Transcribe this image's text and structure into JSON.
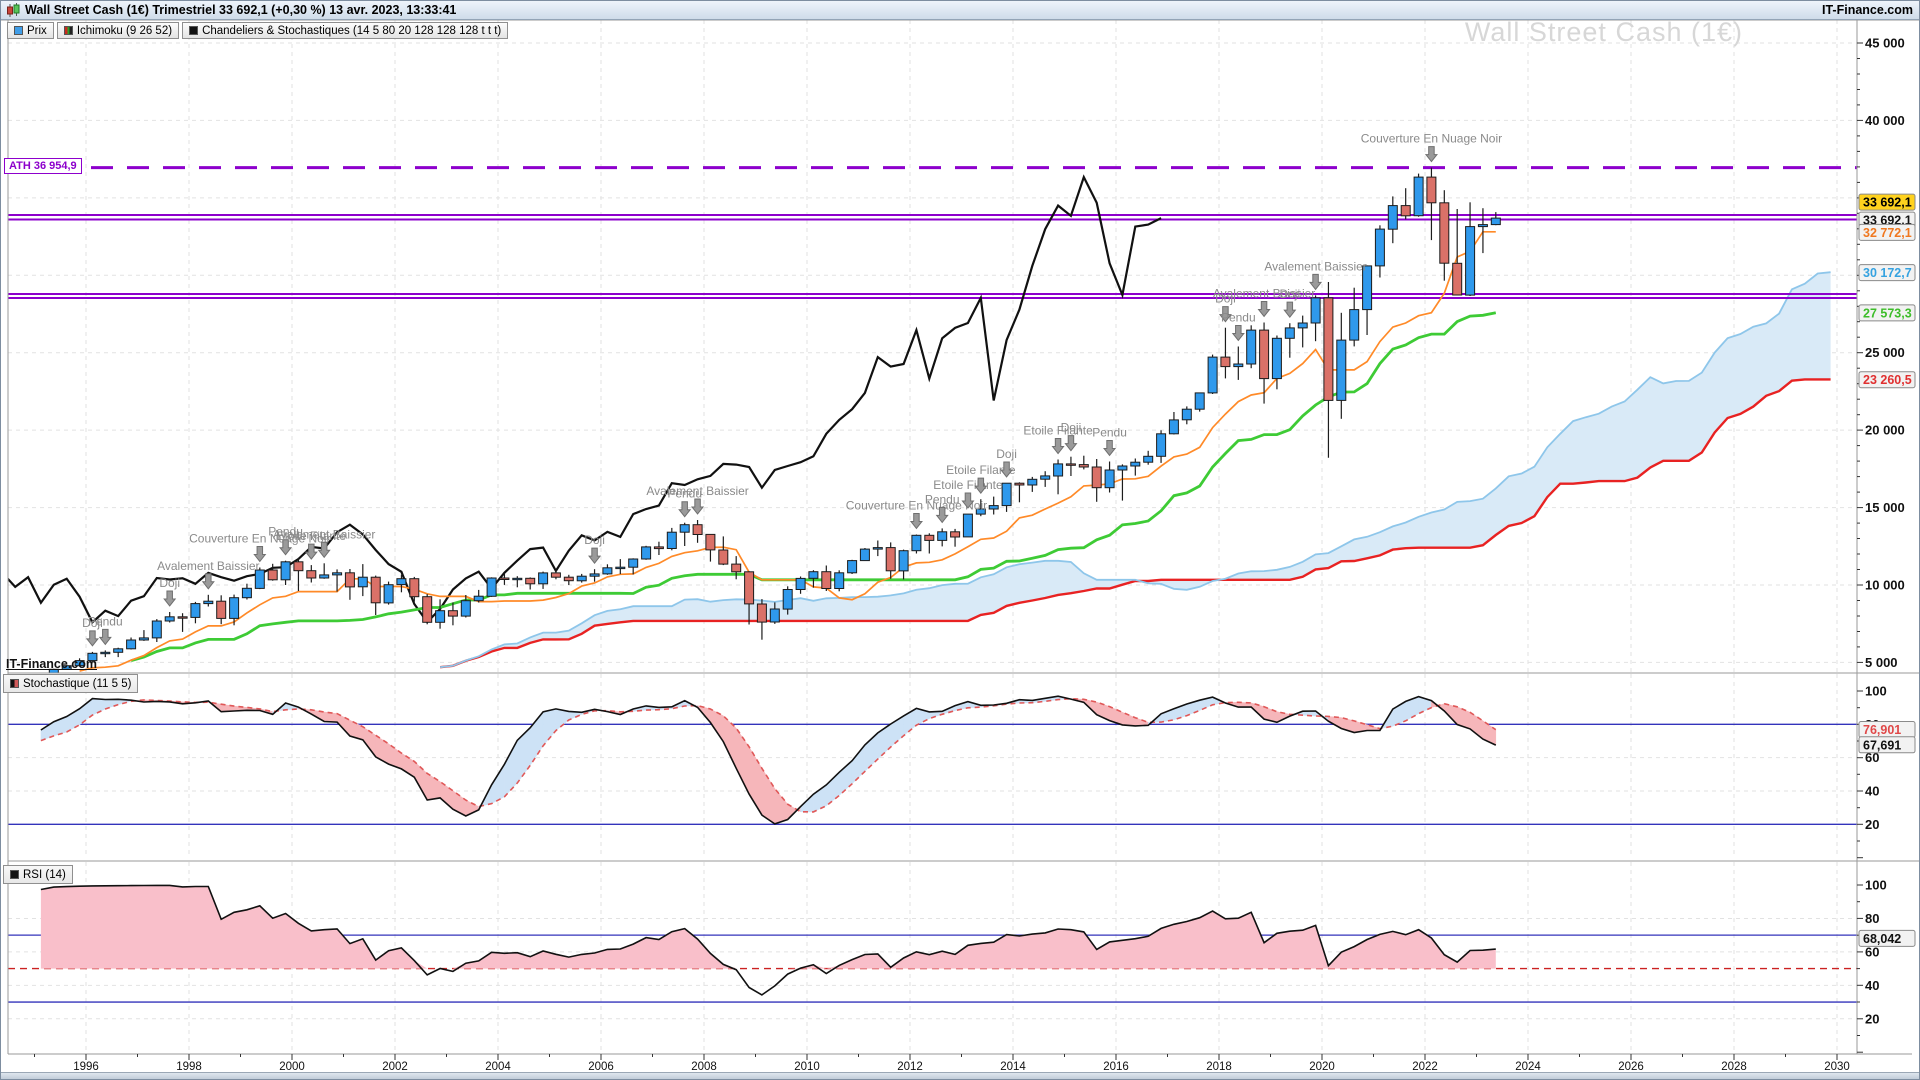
{
  "window": {
    "title": "Wall Street Cash (1€) Trimestriel 33 692,1 (+0,30 %) 13 avr. 2023, 13:33:41",
    "brand": "IT-Finance.com"
  },
  "tabs": [
    {
      "label": "Prix"
    },
    {
      "label": "Ichimoku (9 26 52)"
    },
    {
      "label": "Chandeliers & Stochastiques (14 5 80 20 128 128 128 t t t)"
    }
  ],
  "watermark": "Wall Street Cash (1€)",
  "chart_watermark": "IT-Finance.com",
  "ath": {
    "label": "ATH 36 954,9",
    "value": 36954.9
  },
  "panels": {
    "stoch_label": "Stochastique (11 5 5)",
    "rsi_label": "RSI (14)"
  },
  "axis": {
    "main_ticks": [
      {
        "v": 45000,
        "l": "45 000"
      },
      {
        "v": 40000,
        "l": "40 000"
      },
      {
        "v": 25000,
        "l": "25 000"
      },
      {
        "v": 20000,
        "l": "20 000"
      },
      {
        "v": 15000,
        "l": "15 000"
      },
      {
        "v": 10000,
        "l": "10 000"
      },
      {
        "v": 5000,
        "l": "5 000"
      }
    ],
    "price_tags": [
      {
        "l": "33 692,1",
        "v": 33692.1,
        "fg": "#000000",
        "bg": "#ffd21e",
        "dy": -16
      },
      {
        "l": "33 692,1",
        "v": 33692.1,
        "fg": "#111111",
        "bg": "#f2f2f2",
        "dy": 2
      },
      {
        "l": "32 772,1",
        "v": 32772.1,
        "fg": "#f07820",
        "bg": "#f2f2f2",
        "dy": 0
      },
      {
        "l": "30 172,7",
        "v": 30172.7,
        "fg": "#35a2e0",
        "bg": "#f2f2f2",
        "dy": 0
      },
      {
        "l": "27 573,3",
        "v": 27573.3,
        "fg": "#3dbd2a",
        "bg": "#f2f2f2",
        "dy": 0
      },
      {
        "l": "23 260,5",
        "v": 23260.5,
        "fg": "#e03030",
        "bg": "#f2f2f2",
        "dy": 0
      }
    ],
    "stoch_ticks": [
      {
        "v": 100,
        "l": "100"
      },
      {
        "v": 80,
        "l": "80"
      },
      {
        "v": 60,
        "l": "60"
      },
      {
        "v": 40,
        "l": "40"
      },
      {
        "v": 20,
        "l": "20"
      }
    ],
    "stoch_tags": [
      {
        "l": "76,901",
        "v": 76.901,
        "fg": "#e04848",
        "bg": "#f2f2f2"
      },
      {
        "l": "67,691",
        "v": 67.691,
        "fg": "#111111",
        "bg": "#f2f2f2"
      }
    ],
    "rsi_ticks": [
      {
        "v": 100,
        "l": "100"
      },
      {
        "v": 80,
        "l": "80"
      },
      {
        "v": 60,
        "l": "60"
      },
      {
        "v": 40,
        "l": "40"
      },
      {
        "v": 20,
        "l": "20"
      }
    ],
    "rsi_tags": [
      {
        "l": "68,042",
        "v": 68.042,
        "fg": "#111111",
        "bg": "#f2f2f2"
      }
    ],
    "years": [
      {
        "v": 1996,
        "l": "1996"
      },
      {
        "v": 1998,
        "l": "1998"
      },
      {
        "v": 2000,
        "l": "2000"
      },
      {
        "v": 2002,
        "l": "2002"
      },
      {
        "v": 2004,
        "l": "2004"
      },
      {
        "v": 2006,
        "l": "2006"
      },
      {
        "v": 2008,
        "l": "2008"
      },
      {
        "v": 2010,
        "l": "2010"
      },
      {
        "v": 2012,
        "l": "2012"
      },
      {
        "v": 2014,
        "l": "2014"
      },
      {
        "v": 2016,
        "l": "2016"
      },
      {
        "v": 2018,
        "l": "2018"
      },
      {
        "v": 2020,
        "l": "2020"
      },
      {
        "v": 2022,
        "l": "2022"
      },
      {
        "v": 2024,
        "l": "2024"
      },
      {
        "v": 2026,
        "l": "2026"
      },
      {
        "v": 2028,
        "l": "2028"
      },
      {
        "v": 2030,
        "l": "2030"
      }
    ]
  },
  "levels": {
    "purple_lines": [
      33890,
      33600,
      28790,
      28530
    ]
  },
  "colors": {
    "candle_up": "#2f99ec",
    "candle_down": "#da7168",
    "candle_border": "#1c1c1c",
    "tenkan": "#ff8a28",
    "kijun": "#3ecb35",
    "senkou_a": "#8ec6ea",
    "senkou_b": "#e82222",
    "cloud_fill": "#d9eaf7",
    "chikou": "#111111",
    "purple": "#8d00cc",
    "grid": "#e2e2e2",
    "border": "#9a9a9a",
    "stoch_k": "#111111",
    "stoch_d": "#e05858",
    "stoch_fill_up": "#cde2f6",
    "stoch_fill_down": "#f6b6ba",
    "panel_blue_line": "#3333bb",
    "rsi_fill": "#f9bfca",
    "rsi_mid_line": "#cc2222",
    "annotation": "#8a8a8a",
    "arrow_fill": "#9a9a9a",
    "arrow_stroke": "#6f6f6f"
  },
  "chart_data": {
    "type": "candlestick",
    "title": "Wall Street Cash (1€)",
    "timeframe": "Trimestriel",
    "last_price": 33692.1,
    "change_pct": "+0,30 %",
    "timestamp": "13 avr. 2023, 13:33:41",
    "ath": 36954.9,
    "x_range": [
      1993.9,
      2031.1
    ],
    "y_range_main": [
      4300,
      46500
    ],
    "indicators": {
      "ichimoku": [
        9,
        26,
        52
      ],
      "stochastic": [
        11,
        5,
        5
      ],
      "rsi": [
        14
      ]
    },
    "indicator_values": {
      "tenkan": 32772.1,
      "senkou_a": 30172.7,
      "kijun": 27573.3,
      "senkou_b": 23260.5,
      "stoch_d": 76.901,
      "stoch_k": 67.691,
      "rsi": 68.042
    },
    "candles": [
      [
        1994.5,
        3625,
        3953,
        3612,
        3843
      ],
      [
        1994.75,
        3843,
        3945,
        3674,
        3834
      ],
      [
        1995.0,
        3834,
        4175,
        3794,
        4158
      ],
      [
        1995.25,
        4158,
        4590,
        4125,
        4556
      ],
      [
        1995.5,
        4556,
        4823,
        4527,
        4789
      ],
      [
        1995.75,
        4789,
        5266,
        4748,
        5117
      ],
      [
        1996.0,
        5117,
        5683,
        5033,
        5587
      ],
      [
        1996.25,
        5587,
        5778,
        5346,
        5655
      ],
      [
        1996.5,
        5655,
        5950,
        5347,
        5882
      ],
      [
        1996.75,
        5882,
        6608,
        5838,
        6448
      ],
      [
        1997.0,
        6448,
        7085,
        6392,
        6584
      ],
      [
        1997.25,
        6584,
        7796,
        6316,
        7673
      ],
      [
        1997.5,
        7673,
        8259,
        7581,
        7945
      ],
      [
        1997.75,
        7945,
        8178,
        6972,
        7908
      ],
      [
        1998.0,
        7908,
        8907,
        7525,
        8800
      ],
      [
        1998.25,
        8800,
        9368,
        8612,
        8952
      ],
      [
        1998.5,
        8952,
        9338,
        7467,
        7843
      ],
      [
        1998.75,
        7843,
        9380,
        7400,
        9181
      ],
      [
        1999.0,
        9181,
        10085,
        9064,
        9786
      ],
      [
        1999.25,
        9786,
        11130,
        9732,
        10971
      ],
      [
        1999.5,
        10971,
        11366,
        10279,
        10337
      ],
      [
        1999.75,
        10337,
        11568,
        10000,
        11497
      ],
      [
        2000.0,
        11497,
        11750,
        9611,
        10922
      ],
      [
        2000.25,
        10922,
        11287,
        10164,
        10448
      ],
      [
        2000.5,
        10448,
        11401,
        10398,
        10651
      ],
      [
        2000.75,
        10651,
        11007,
        9571,
        10788
      ],
      [
        2001.0,
        10788,
        11035,
        9047,
        9879
      ],
      [
        2001.25,
        9879,
        11350,
        9285,
        10502
      ],
      [
        2001.5,
        10502,
        10605,
        8062,
        8848
      ],
      [
        2001.75,
        8848,
        10220,
        8734,
        10022
      ],
      [
        2002.0,
        10022,
        10673,
        9529,
        10404
      ],
      [
        2002.25,
        10404,
        10520,
        8923,
        9243
      ],
      [
        2002.5,
        9243,
        9410,
        7461,
        7592
      ],
      [
        2002.75,
        7592,
        9077,
        7181,
        8342
      ],
      [
        2003.0,
        8342,
        8869,
        7397,
        7992
      ],
      [
        2003.25,
        7992,
        9353,
        7904,
        8985
      ],
      [
        2003.5,
        8985,
        9686,
        8871,
        9275
      ],
      [
        2003.75,
        9275,
        10494,
        9230,
        10454
      ],
      [
        2004.0,
        10454,
        10753,
        10007,
        10358
      ],
      [
        2004.25,
        10358,
        10570,
        9852,
        10435
      ],
      [
        2004.5,
        10435,
        10492,
        9708,
        10080
      ],
      [
        2004.75,
        10080,
        10868,
        9749,
        10783
      ],
      [
        2005.0,
        10783,
        10984,
        10368,
        10504
      ],
      [
        2005.25,
        10504,
        10656,
        10000,
        10275
      ],
      [
        2005.5,
        10275,
        10719,
        10156,
        10569
      ],
      [
        2005.75,
        10569,
        11022,
        10215,
        10718
      ],
      [
        2006.0,
        10718,
        11335,
        10661,
        11109
      ],
      [
        2006.25,
        11109,
        11670,
        10706,
        11150
      ],
      [
        2006.5,
        11150,
        11723,
        10683,
        11679
      ],
      [
        2006.75,
        11679,
        12529,
        11630,
        12463
      ],
      [
        2007.0,
        12463,
        12796,
        11940,
        12354
      ],
      [
        2007.25,
        12354,
        13689,
        12243,
        13409
      ],
      [
        2007.5,
        13409,
        14021,
        12518,
        13896
      ],
      [
        2007.75,
        13896,
        14198,
        12724,
        13265
      ],
      [
        2008.0,
        13265,
        13279,
        11508,
        12263
      ],
      [
        2008.25,
        12263,
        13136,
        11288,
        11350
      ],
      [
        2008.5,
        11350,
        11867,
        10365,
        10851
      ],
      [
        2008.75,
        10851,
        10882,
        7449,
        8776
      ],
      [
        2009.0,
        8776,
        9088,
        6470,
        7609
      ],
      [
        2009.25,
        7609,
        8878,
        7485,
        8447
      ],
      [
        2009.5,
        8447,
        9918,
        8087,
        9712
      ],
      [
        2009.75,
        9712,
        10549,
        9430,
        10428
      ],
      [
        2010.0,
        10428,
        10955,
        9835,
        10857
      ],
      [
        2010.25,
        10857,
        11258,
        9614,
        9774
      ],
      [
        2010.5,
        9774,
        10948,
        9596,
        10788
      ],
      [
        2010.75,
        10788,
        11625,
        10711,
        11578
      ],
      [
        2011.0,
        11578,
        12391,
        11555,
        12320
      ],
      [
        2011.25,
        12320,
        12876,
        11863,
        12414
      ],
      [
        2011.5,
        12414,
        12753,
        10404,
        10913
      ],
      [
        2011.75,
        10913,
        12284,
        10362,
        12218
      ],
      [
        2012.0,
        12218,
        13264,
        12035,
        13212
      ],
      [
        2012.25,
        13212,
        13338,
        12035,
        12880
      ],
      [
        2012.5,
        12880,
        13653,
        12491,
        13437
      ],
      [
        2012.75,
        13437,
        13620,
        12471,
        13104
      ],
      [
        2013.0,
        13104,
        14585,
        13104,
        14579
      ],
      [
        2013.25,
        14579,
        15542,
        14444,
        14910
      ],
      [
        2013.5,
        14910,
        15709,
        14551,
        15130
      ],
      [
        2013.75,
        15130,
        16588,
        14719,
        16577
      ],
      [
        2014.0,
        16577,
        16631,
        15340,
        16458
      ],
      [
        2014.25,
        16458,
        16978,
        16015,
        16827
      ],
      [
        2014.5,
        16827,
        17350,
        16333,
        17043
      ],
      [
        2014.75,
        17043,
        18103,
        15855,
        17823
      ],
      [
        2015.0,
        17823,
        18288,
        17037,
        17776
      ],
      [
        2015.25,
        17776,
        18351,
        17465,
        17620
      ],
      [
        2015.5,
        17620,
        18137,
        15370,
        16285
      ],
      [
        2015.75,
        16285,
        17977,
        15975,
        17425
      ],
      [
        2016.0,
        17425,
        17790,
        15450,
        17685
      ],
      [
        2016.25,
        17685,
        18167,
        17063,
        17930
      ],
      [
        2016.5,
        17930,
        18668,
        17770,
        18308
      ],
      [
        2016.75,
        18308,
        19987,
        17883,
        19763
      ],
      [
        2017.0,
        19763,
        21169,
        19718,
        20663
      ],
      [
        2017.25,
        20663,
        21535,
        20379,
        21350
      ],
      [
        2017.5,
        21350,
        22419,
        21197,
        22405
      ],
      [
        2017.75,
        22405,
        24876,
        22336,
        24719
      ],
      [
        2018.0,
        24719,
        26617,
        23344,
        24103
      ],
      [
        2018.25,
        24103,
        25402,
        23245,
        24271
      ],
      [
        2018.5,
        24271,
        26769,
        23998,
        26458
      ],
      [
        2018.75,
        26458,
        26952,
        21713,
        23327
      ],
      [
        2019.0,
        23327,
        26110,
        22638,
        25929
      ],
      [
        2019.25,
        25929,
        26907,
        24681,
        26600
      ],
      [
        2019.5,
        26600,
        27399,
        25340,
        26917
      ],
      [
        2019.75,
        26917,
        28702,
        25743,
        28538
      ],
      [
        2020.0,
        28538,
        29569,
        18214,
        21917
      ],
      [
        2020.25,
        21917,
        27580,
        20735,
        25813
      ],
      [
        2020.5,
        25813,
        29199,
        25406,
        27782
      ],
      [
        2020.75,
        27782,
        30637,
        26144,
        30606
      ],
      [
        2021.0,
        30606,
        33227,
        29857,
        32982
      ],
      [
        2021.25,
        32982,
        35092,
        32071,
        34503
      ],
      [
        2021.5,
        34503,
        35625,
        33613,
        33844
      ],
      [
        2021.75,
        33844,
        36565,
        33785,
        36338
      ],
      [
        2022.0,
        36338,
        36954.9,
        32272,
        34678
      ],
      [
        2022.25,
        34678,
        35492,
        29653,
        30775
      ],
      [
        2022.5,
        30775,
        34281,
        28716,
        28726
      ],
      [
        2022.75,
        28726,
        34712,
        28661,
        33147
      ],
      [
        2023.0,
        33147,
        34334,
        31430,
        33274
      ],
      [
        2023.25,
        33274,
        34082,
        33235,
        33692.1
      ]
    ],
    "annotations": [
      {
        "t": 1996.125,
        "label": "Doji"
      },
      {
        "t": 1996.375,
        "label": "Pendu"
      },
      {
        "t": 1997.625,
        "label": "Doji"
      },
      {
        "t": 1998.375,
        "label": "Avalement Baissier"
      },
      {
        "t": 1999.375,
        "label": "Couverture En Nuage Noir"
      },
      {
        "t": 1999.875,
        "label": "Pendu"
      },
      {
        "t": 2000.375,
        "label": "Etoile Filante"
      },
      {
        "t": 2000.625,
        "label": "Avalement Baissier"
      },
      {
        "t": 2005.875,
        "label": "Doji"
      },
      {
        "t": 2007.625,
        "label": "Pendu"
      },
      {
        "t": 2007.875,
        "label": "Avalement Baissier"
      },
      {
        "t": 2012.125,
        "label": "Couverture En Nuage Noir"
      },
      {
        "t": 2012.625,
        "label": "Pendu"
      },
      {
        "t": 2013.125,
        "label": "Etoile Filante"
      },
      {
        "t": 2013.375,
        "label": "Etoile Filante"
      },
      {
        "t": 2013.875,
        "label": "Doji"
      },
      {
        "t": 2014.875,
        "label": "Etoile Filante"
      },
      {
        "t": 2015.125,
        "label": "Doji"
      },
      {
        "t": 2015.875,
        "label": "Pendu"
      },
      {
        "t": 2018.125,
        "label": "Doji"
      },
      {
        "t": 2018.375,
        "label": "Pendu"
      },
      {
        "t": 2018.875,
        "label": "Avalement Baissier"
      },
      {
        "t": 2019.375,
        "label": "Doji"
      },
      {
        "t": 2019.875,
        "label": "Avalement Baissier"
      },
      {
        "t": 2022.125,
        "label": "Couverture En Nuage Noir"
      }
    ]
  }
}
